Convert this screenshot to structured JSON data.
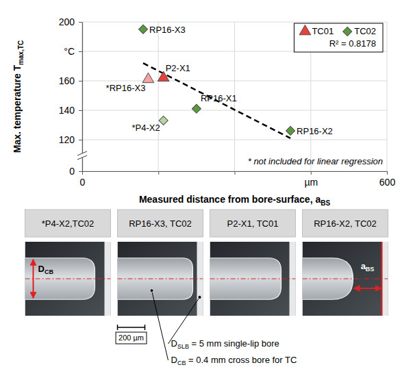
{
  "chart_data": {
    "type": "scatter",
    "x_label": {
      "text": "Measured distance from bore-surface, a",
      "subscript": "BS"
    },
    "y_label": {
      "text": "Max. temperature T",
      "subscript": "max,TC"
    },
    "xlim": [
      0,
      600
    ],
    "xticks": [
      0,
      {
        "value": 150,
        "label": null
      },
      {
        "value": 300,
        "label": null
      },
      {
        "value": 450,
        "label": "µm"
      },
      600
    ],
    "ylim": [
      0,
      200
    ],
    "yticks": [
      0,
      120,
      140,
      160,
      {
        "value": 180,
        "label": "°C"
      },
      200
    ],
    "grid": true,
    "legend": "top-right",
    "series": [
      {
        "name": "TC01",
        "color": "#e8413c",
        "marker": "triangle",
        "x": [
          130,
          160
        ],
        "values": [
          161,
          162
        ],
        "labels": [
          "*RP16-X3",
          "P2-X1"
        ],
        "colors": [
          "#f4a3a0",
          "#e8413c"
        ]
      },
      {
        "name": "TC02",
        "color": "#5a9a3c",
        "marker": "diamond",
        "x": [
          120,
          160,
          225,
          410
        ],
        "values": [
          195,
          133,
          141,
          126
        ],
        "labels": [
          "RP16-X3",
          "*P4-X2",
          "RP16-X1",
          "RP16-X2"
        ],
        "colors": [
          "#5a9a3c",
          "#b5d6a0",
          "#5a9a3c",
          "#5a9a3c"
        ]
      }
    ],
    "trend_line": {
      "x": [
        120,
        410
      ],
      "values": [
        172,
        121
      ],
      "line_style": "dashed",
      "color": "#000000",
      "label": "R² = 0.8178"
    },
    "footnote": "* not included for linear regression"
  },
  "micrographs": {
    "titles": [
      "*P4-X2,TC02",
      "RP16-X3, TC02",
      "P2-X1, TC01",
      "RP16-X2, TC02"
    ],
    "d_cb_label": {
      "text": "D",
      "subscript": "CB"
    },
    "a_bs_label": {
      "text": "a",
      "subscript": "BS"
    },
    "scale_bar": "200 µm",
    "notes": [
      {
        "text": "D",
        "subscript": "SLB",
        "rest": " = 5 mm single-lip bore"
      },
      {
        "text": "D",
        "subscript": "CB",
        "rest": " = 0.4 mm cross bore for TC"
      }
    ]
  }
}
